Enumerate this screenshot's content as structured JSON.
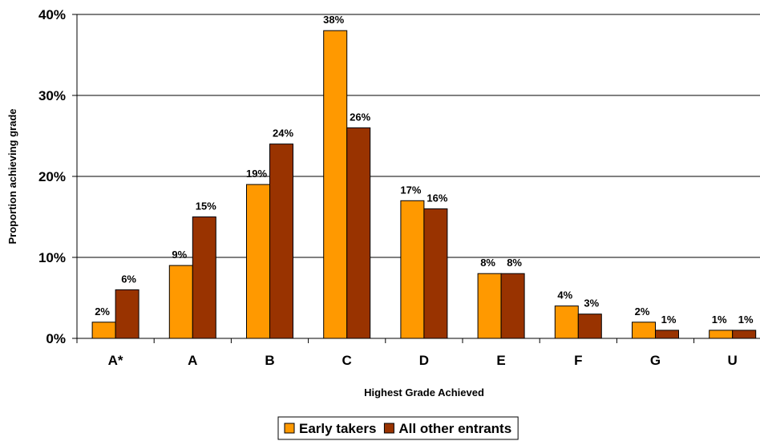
{
  "chart_data": {
    "type": "bar",
    "categories": [
      "A*",
      "A",
      "B",
      "C",
      "D",
      "E",
      "F",
      "G",
      "U"
    ],
    "series": [
      {
        "name": "Early takers",
        "color": "#FF9900",
        "values": [
          2,
          9,
          19,
          38,
          17,
          8,
          4,
          2,
          1
        ],
        "labels": [
          "2%",
          "9%",
          "19%",
          "38%",
          "17%",
          "8%",
          "4%",
          "2%",
          "1%"
        ]
      },
      {
        "name": "All other entrants",
        "color": "#993300",
        "values": [
          6,
          15,
          24,
          26,
          16,
          8,
          3,
          1,
          1
        ],
        "labels": [
          "6%",
          "15%",
          "24%",
          "26%",
          "16%",
          "8%",
          "3%",
          "1%",
          "1%"
        ]
      }
    ],
    "y_ticks": [
      0,
      10,
      20,
      30,
      40
    ],
    "y_tick_labels": [
      "0%",
      "10%",
      "20%",
      "30%",
      "40%"
    ],
    "ylim": [
      0,
      40
    ],
    "xlabel": "Highest Grade Achieved",
    "ylabel": "Proportion achieving grade",
    "grid": true,
    "legend_position": "bottom"
  }
}
